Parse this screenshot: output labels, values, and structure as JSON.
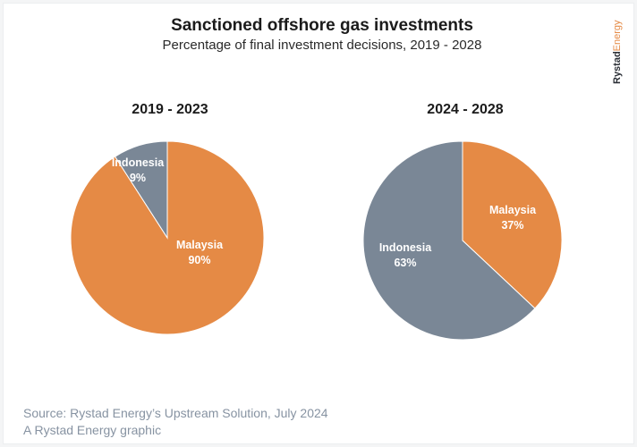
{
  "title": "Sanctioned offshore gas investments",
  "subtitle": "Percentage of final investment decisions, 2019 - 2028",
  "logo": {
    "part1": "Rystad",
    "part2": "Energy"
  },
  "colors": {
    "Malaysia": "#E58A45",
    "Indonesia": "#7A8796"
  },
  "chart_data": [
    {
      "type": "pie",
      "title": "2019 - 2023",
      "slices": [
        {
          "label": "Malaysia",
          "value": 90,
          "text": "90%"
        },
        {
          "label": "Indonesia",
          "value": 9,
          "text": "9%"
        }
      ]
    },
    {
      "type": "pie",
      "title": "2024 - 2028",
      "slices": [
        {
          "label": "Malaysia",
          "value": 37,
          "text": "37%"
        },
        {
          "label": "Indonesia",
          "value": 63,
          "text": "63%"
        }
      ]
    }
  ],
  "source": "Source: Rystad Energy’s Upstream Solution, July 2024",
  "credit": "A Rystad Energy graphic"
}
